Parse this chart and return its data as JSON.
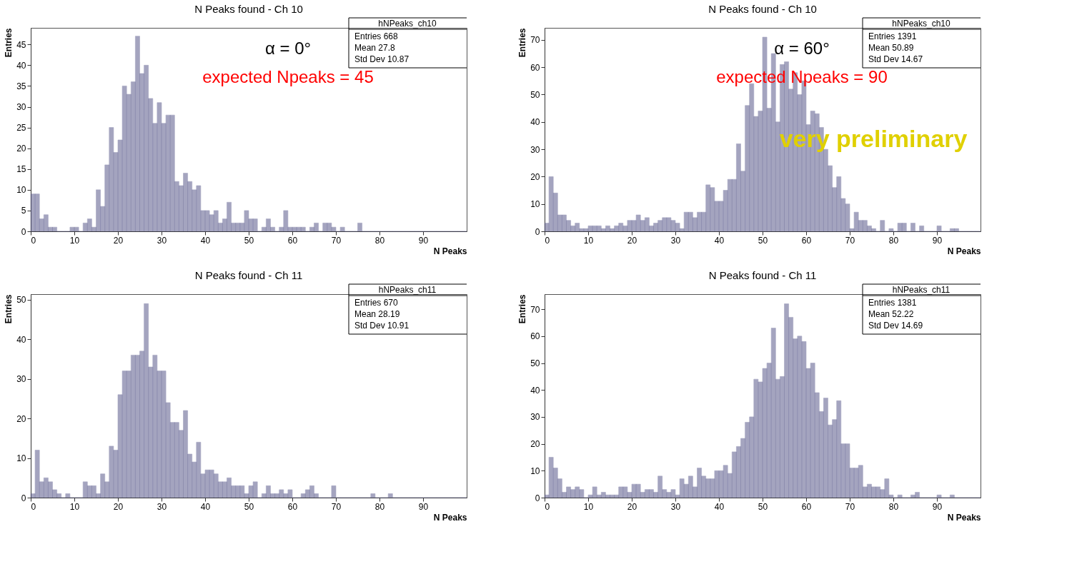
{
  "chart_data": [
    {
      "type": "histogram",
      "title": "N Peaks found - Ch 10",
      "xlabel": "N Peaks",
      "ylabel": "Entries",
      "color": "#5a5a8c",
      "bins": [
        0,
        1,
        2,
        3,
        4,
        5,
        6,
        7,
        8,
        9,
        10,
        11,
        12,
        13,
        14,
        15,
        16,
        17,
        18,
        19,
        20,
        21,
        22,
        23,
        24,
        25,
        26,
        27,
        28,
        29,
        30,
        31,
        32,
        33,
        34,
        35,
        36,
        37,
        38,
        39,
        40,
        41,
        42,
        43,
        44,
        45,
        46,
        47,
        48,
        49,
        50,
        51,
        52,
        53,
        54,
        55,
        56,
        57,
        58,
        59,
        60,
        61,
        62,
        63,
        64,
        65,
        66,
        67,
        68,
        69,
        70,
        71,
        72,
        73,
        74,
        75,
        76,
        77,
        78,
        79,
        80,
        81,
        82,
        83,
        84,
        85,
        86,
        87,
        88,
        89,
        90,
        91,
        92,
        93,
        94,
        95,
        96,
        97,
        98,
        99,
        100
      ],
      "values": [
        9,
        9,
        3,
        4,
        1,
        1,
        0,
        0,
        0,
        1,
        1,
        0,
        2,
        3,
        1,
        10,
        6,
        16,
        25,
        19,
        22,
        35,
        33,
        36,
        47,
        38,
        40,
        32,
        26,
        31,
        26,
        28,
        28,
        12,
        11,
        14,
        12,
        10,
        11,
        5,
        5,
        4,
        5,
        2,
        3,
        7,
        2,
        2,
        2,
        5,
        3,
        3,
        0,
        1,
        3,
        1,
        0,
        1,
        5,
        1,
        1,
        1,
        1,
        0,
        1,
        2,
        0,
        2,
        2,
        1,
        0,
        1,
        0,
        0,
        0,
        2,
        0,
        0,
        0,
        0,
        0,
        0,
        0,
        0,
        0,
        0,
        0,
        0,
        0,
        0,
        0,
        0,
        0,
        0,
        0,
        0,
        0,
        0,
        0,
        0
      ],
      "xlim": [
        0,
        100
      ],
      "ylim": [
        0,
        49
      ],
      "xticks": [
        0,
        10,
        20,
        30,
        40,
        50,
        60,
        70,
        80,
        90
      ],
      "yticks": [
        0,
        5,
        10,
        15,
        20,
        25,
        30,
        35,
        40,
        45
      ],
      "annotations": [
        "α = 0°",
        "expected Npeaks = 45",
        "hNPeaks_ch10",
        "Entries 668",
        "Mean 27.8",
        "Std Dev 10.87"
      ]
    },
    {
      "type": "histogram",
      "title": "N Peaks found - Ch 10",
      "xlabel": "N Peaks",
      "ylabel": "Entries",
      "color": "#5a5a8c",
      "bins": [
        0,
        1,
        2,
        3,
        4,
        5,
        6,
        7,
        8,
        9,
        10,
        11,
        12,
        13,
        14,
        15,
        16,
        17,
        18,
        19,
        20,
        21,
        22,
        23,
        24,
        25,
        26,
        27,
        28,
        29,
        30,
        31,
        32,
        33,
        34,
        35,
        36,
        37,
        38,
        39,
        40,
        41,
        42,
        43,
        44,
        45,
        46,
        47,
        48,
        49,
        50,
        51,
        52,
        53,
        54,
        55,
        56,
        57,
        58,
        59,
        60,
        61,
        62,
        63,
        64,
        65,
        66,
        67,
        68,
        69,
        70,
        71,
        72,
        73,
        74,
        75,
        76,
        77,
        78,
        79,
        80,
        81,
        82,
        83,
        84,
        85,
        86,
        87,
        88,
        89,
        90,
        91,
        92,
        93,
        94,
        95,
        96,
        97,
        98,
        99,
        100
      ],
      "values": [
        3,
        20,
        14,
        6,
        6,
        4,
        2,
        3,
        1,
        1,
        2,
        2,
        2,
        1,
        2,
        1,
        2,
        3,
        2,
        4,
        4,
        6,
        4,
        5,
        2,
        3,
        4,
        5,
        5,
        4,
        3,
        1,
        7,
        7,
        5,
        7,
        7,
        17,
        16,
        11,
        11,
        15,
        19,
        19,
        32,
        22,
        46,
        54,
        42,
        44,
        71,
        45,
        65,
        40,
        61,
        62,
        52,
        58,
        50,
        55,
        39,
        44,
        43,
        38,
        30,
        24,
        16,
        20,
        12,
        10,
        1,
        7,
        4,
        4,
        2,
        1,
        0,
        4,
        0,
        1,
        0,
        3,
        3,
        0,
        3,
        0,
        2,
        0,
        0,
        0,
        2,
        0,
        0,
        1,
        1,
        0,
        0,
        0,
        0,
        0
      ],
      "xlim": [
        0,
        100
      ],
      "ylim": [
        0,
        74.4
      ],
      "xticks": [
        0,
        10,
        20,
        30,
        40,
        50,
        60,
        70,
        80,
        90
      ],
      "yticks": [
        0,
        10,
        20,
        30,
        40,
        50,
        60,
        70
      ],
      "annotations": [
        "α = 60°",
        "expected Npeaks = 90",
        "very preliminary",
        "hNPeaks_ch10",
        "Entries 1391",
        "Mean 50.89",
        "Std Dev 14.67"
      ]
    },
    {
      "type": "histogram",
      "title": "N Peaks found - Ch 11",
      "xlabel": "N Peaks",
      "ylabel": "Entries",
      "color": "#5a5a8c",
      "bins": [
        0,
        1,
        2,
        3,
        4,
        5,
        6,
        7,
        8,
        9,
        10,
        11,
        12,
        13,
        14,
        15,
        16,
        17,
        18,
        19,
        20,
        21,
        22,
        23,
        24,
        25,
        26,
        27,
        28,
        29,
        30,
        31,
        32,
        33,
        34,
        35,
        36,
        37,
        38,
        39,
        40,
        41,
        42,
        43,
        44,
        45,
        46,
        47,
        48,
        49,
        50,
        51,
        52,
        53,
        54,
        55,
        56,
        57,
        58,
        59,
        60,
        61,
        62,
        63,
        64,
        65,
        66,
        67,
        68,
        69,
        70,
        71,
        72,
        73,
        74,
        75,
        76,
        77,
        78,
        79,
        80,
        81,
        82,
        83,
        84,
        85,
        86,
        87,
        88,
        89,
        90,
        91,
        92,
        93,
        94,
        95,
        96,
        97,
        98,
        99,
        100
      ],
      "values": [
        1,
        12,
        4,
        5,
        4,
        2,
        1,
        0,
        1,
        0,
        0,
        0,
        4,
        3,
        3,
        1,
        6,
        4,
        13,
        12,
        26,
        32,
        32,
        36,
        36,
        37,
        49,
        33,
        36,
        32,
        32,
        24,
        19,
        19,
        17,
        22,
        11,
        9,
        14,
        6,
        7,
        7,
        6,
        4,
        4,
        5,
        3,
        3,
        3,
        1,
        3,
        4,
        0,
        1,
        3,
        1,
        1,
        2,
        1,
        2,
        0,
        0,
        1,
        2,
        3,
        1,
        0,
        0,
        0,
        3,
        0,
        0,
        0,
        0,
        0,
        0,
        0,
        0,
        1,
        0,
        0,
        0,
        1,
        0,
        0,
        0,
        0,
        0,
        0,
        0,
        0,
        0,
        0,
        0,
        0,
        0,
        0,
        0,
        0,
        0
      ],
      "xlim": [
        0,
        100
      ],
      "ylim": [
        0,
        51.4
      ],
      "xticks": [
        0,
        10,
        20,
        30,
        40,
        50,
        60,
        70,
        80,
        90
      ],
      "yticks": [
        0,
        10,
        20,
        30,
        40,
        50
      ],
      "annotations": [
        "hNPeaks_ch11",
        "Entries 670",
        "Mean 28.19",
        "Std Dev 10.91"
      ]
    },
    {
      "type": "histogram",
      "title": "N Peaks found - Ch 11",
      "xlabel": "N Peaks",
      "ylabel": "Entries",
      "color": "#5a5a8c",
      "bins": [
        0,
        1,
        2,
        3,
        4,
        5,
        6,
        7,
        8,
        9,
        10,
        11,
        12,
        13,
        14,
        15,
        16,
        17,
        18,
        19,
        20,
        21,
        22,
        23,
        24,
        25,
        26,
        27,
        28,
        29,
        30,
        31,
        32,
        33,
        34,
        35,
        36,
        37,
        38,
        39,
        40,
        41,
        42,
        43,
        44,
        45,
        46,
        47,
        48,
        49,
        50,
        51,
        52,
        53,
        54,
        55,
        56,
        57,
        58,
        59,
        60,
        61,
        62,
        63,
        64,
        65,
        66,
        67,
        68,
        69,
        70,
        71,
        72,
        73,
        74,
        75,
        76,
        77,
        78,
        79,
        80,
        81,
        82,
        83,
        84,
        85,
        86,
        87,
        88,
        89,
        90,
        91,
        92,
        93,
        94,
        95,
        96,
        97,
        98,
        99,
        100
      ],
      "values": [
        1,
        15,
        11,
        7,
        2,
        4,
        3,
        4,
        3,
        0,
        1,
        4,
        1,
        2,
        1,
        1,
        1,
        4,
        4,
        2,
        5,
        5,
        2,
        3,
        3,
        2,
        8,
        3,
        2,
        3,
        1,
        7,
        5,
        8,
        4,
        11,
        8,
        7,
        7,
        10,
        10,
        12,
        9,
        17,
        19,
        22,
        28,
        30,
        44,
        43,
        48,
        50,
        63,
        44,
        45,
        72,
        67,
        59,
        60,
        58,
        48,
        50,
        39,
        32,
        37,
        27,
        29,
        36,
        20,
        20,
        11,
        11,
        12,
        4,
        5,
        4,
        4,
        3,
        7,
        1,
        0,
        1,
        0,
        0,
        1,
        2,
        0,
        0,
        0,
        0,
        1,
        0,
        0,
        1,
        0,
        0,
        0,
        0,
        0,
        0
      ],
      "xlim": [
        0,
        100
      ],
      "ylim": [
        0,
        75.6
      ],
      "xticks": [
        0,
        10,
        20,
        30,
        40,
        50,
        60,
        70,
        80,
        90
      ],
      "yticks": [
        0,
        10,
        20,
        30,
        40,
        50,
        60,
        70
      ],
      "annotations": [
        "hNPeaks_ch11",
        "Entries 1381",
        "Mean 52.22",
        "Std Dev 14.69"
      ]
    }
  ]
}
